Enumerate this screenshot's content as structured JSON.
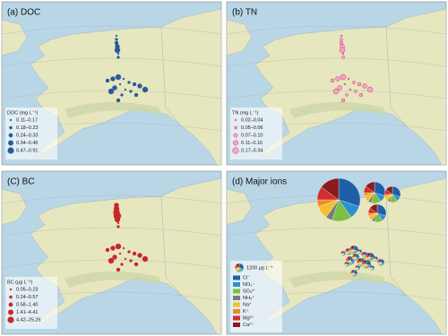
{
  "panels": [
    {
      "title": "(a) DOC",
      "legend_title": "DOC (mg L⁻¹)",
      "legend": [
        "0.11–0.17",
        "0.18–0.23",
        "0.24–0.33",
        "0.34–0.46",
        "0.47–0.91"
      ]
    },
    {
      "title": "(b) TN",
      "legend_title": "TN (mg L⁻¹)",
      "legend": [
        "0.02–0.04",
        "0.05–0.06",
        "0.07–0.10",
        "0.11–0.16",
        "0.17–0.34"
      ]
    },
    {
      "title": "(C) BC",
      "legend_title": "BC (µg L⁻¹)",
      "legend": [
        "0.05–0.23",
        "0.24–0.57",
        "0.58–1.40",
        "1.41–4.41",
        "4.42–25.26"
      ]
    },
    {
      "title": "(d) Major ions",
      "legend_title": "1200 µg L⁻¹",
      "legend": [
        "Cl⁻",
        "NO₃⁻",
        "SO₄²⁻",
        "NH₄⁺",
        "Na⁺",
        "K⁺",
        "Mg²⁺",
        "Ca²⁺"
      ]
    }
  ]
}
